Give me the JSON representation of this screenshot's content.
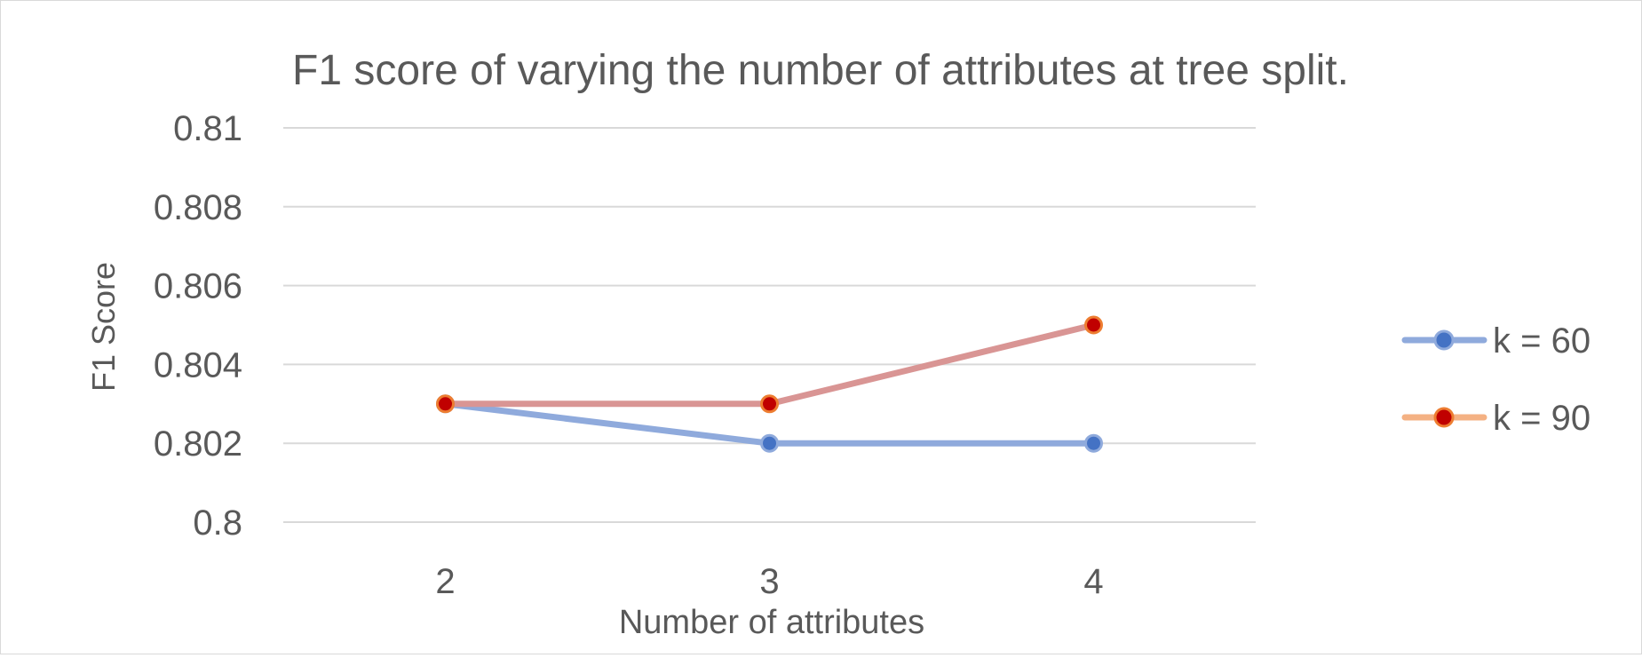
{
  "chart_data": {
    "type": "line",
    "title": "F1 score of varying the number of attributes at tree split.",
    "xlabel": "Number of attributes",
    "ylabel": "F1 Score",
    "x": [
      2,
      3,
      4
    ],
    "ylim": [
      0.8,
      0.81
    ],
    "yticks": [
      "0.8",
      "0.802",
      "0.804",
      "0.806",
      "0.808",
      "0.81"
    ],
    "grid": true,
    "legend_position": "right",
    "series": [
      {
        "name": "k = 60",
        "values": [
          0.803,
          0.802,
          0.802
        ],
        "line_color": "#8faadc",
        "marker_color": "#4472c4"
      },
      {
        "name": "k = 90",
        "values": [
          0.803,
          0.803,
          0.805
        ],
        "line_color": "#d99594",
        "legend_line_color": "#f4b183",
        "marker_color": "#c00000",
        "marker_edge": "#ed7d31"
      }
    ]
  }
}
